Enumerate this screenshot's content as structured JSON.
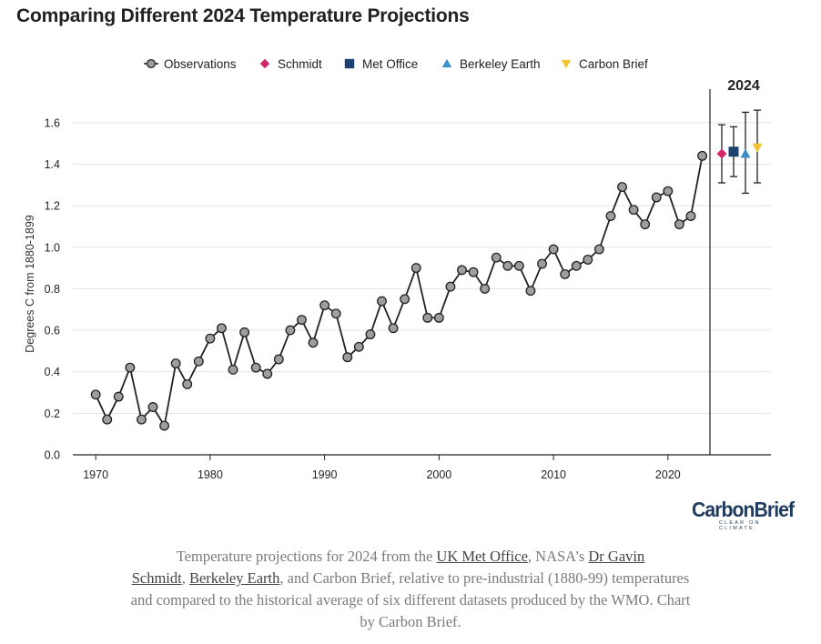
{
  "title": "Comparing Different 2024 Temperature Projections",
  "chart_data": {
    "type": "line",
    "title": "Comparing Different 2024 Temperature Projections",
    "ylabel": "Degrees C from 1880-1899",
    "xlabel": "",
    "xlim": [
      1968,
      2029
    ],
    "ylim": [
      0,
      1.7
    ],
    "x_ticks": [
      1970,
      1980,
      1990,
      2000,
      2010,
      2020
    ],
    "y_ticks": [
      0.0,
      0.2,
      0.4,
      0.6,
      0.8,
      1.0,
      1.2,
      1.4,
      1.6
    ],
    "y_tick_labels": [
      "0.0",
      "0.2",
      "0.4",
      "0.6",
      "0.8",
      "1.0",
      "1.2",
      "1.4",
      "1.6"
    ],
    "grid": "horizontal",
    "legend_position": "top",
    "observations": {
      "name": "Observations",
      "color": "#9e9e9e",
      "x": [
        1970,
        1971,
        1972,
        1973,
        1974,
        1975,
        1976,
        1977,
        1978,
        1979,
        1980,
        1981,
        1982,
        1983,
        1984,
        1985,
        1986,
        1987,
        1988,
        1989,
        1990,
        1991,
        1992,
        1993,
        1994,
        1995,
        1996,
        1997,
        1998,
        1999,
        2000,
        2001,
        2002,
        2003,
        2004,
        2005,
        2006,
        2007,
        2008,
        2009,
        2010,
        2011,
        2012,
        2013,
        2014,
        2015,
        2016,
        2017,
        2018,
        2019,
        2020,
        2021,
        2022,
        2023
      ],
      "y": [
        0.29,
        0.17,
        0.28,
        0.42,
        0.17,
        0.23,
        0.14,
        0.44,
        0.34,
        0.45,
        0.56,
        0.61,
        0.41,
        0.59,
        0.42,
        0.39,
        0.46,
        0.6,
        0.65,
        0.54,
        0.72,
        0.68,
        0.47,
        0.52,
        0.58,
        0.74,
        0.61,
        0.75,
        0.9,
        0.66,
        0.66,
        0.81,
        0.89,
        0.88,
        0.8,
        0.95,
        0.91,
        0.91,
        0.79,
        0.92,
        0.99,
        0.87,
        0.91,
        0.94,
        0.99,
        1.15,
        1.29,
        1.18,
        1.11,
        1.24,
        1.27,
        1.11,
        1.15,
        1.44
      ]
    },
    "projections_panel_label": "2024",
    "projections": [
      {
        "name": "Schmidt",
        "value": 1.45,
        "low": 1.31,
        "high": 1.59,
        "color": "#d6266a",
        "marker": "diamond"
      },
      {
        "name": "Met Office",
        "value": 1.46,
        "low": 1.34,
        "high": 1.58,
        "color": "#1c4370",
        "marker": "square"
      },
      {
        "name": "Berkeley Earth",
        "value": 1.45,
        "low": 1.26,
        "high": 1.65,
        "color": "#3d8fc9",
        "marker": "triangle-up"
      },
      {
        "name": "Carbon Brief",
        "value": 1.48,
        "low": 1.31,
        "high": 1.66,
        "color": "#f2c230",
        "marker": "triangle-down"
      }
    ]
  },
  "logo": {
    "main": "CarbonBrief",
    "sub": "CLEAR ON CLIMATE"
  },
  "caption": {
    "t1": "Temperature projections for 2024 from the ",
    "l1": "UK Met Office",
    "t2": ", NASA’s ",
    "l2a": "Dr Gavin",
    "l2b": "Schmidt",
    "t3": ", ",
    "l3": "Berkeley Earth",
    "t4": ", and Carbon Brief, relative to pre-industrial (1880-99) temperatures and compared to the historical average of six different datasets produced by the WMO. Chart by Carbon Brief."
  }
}
